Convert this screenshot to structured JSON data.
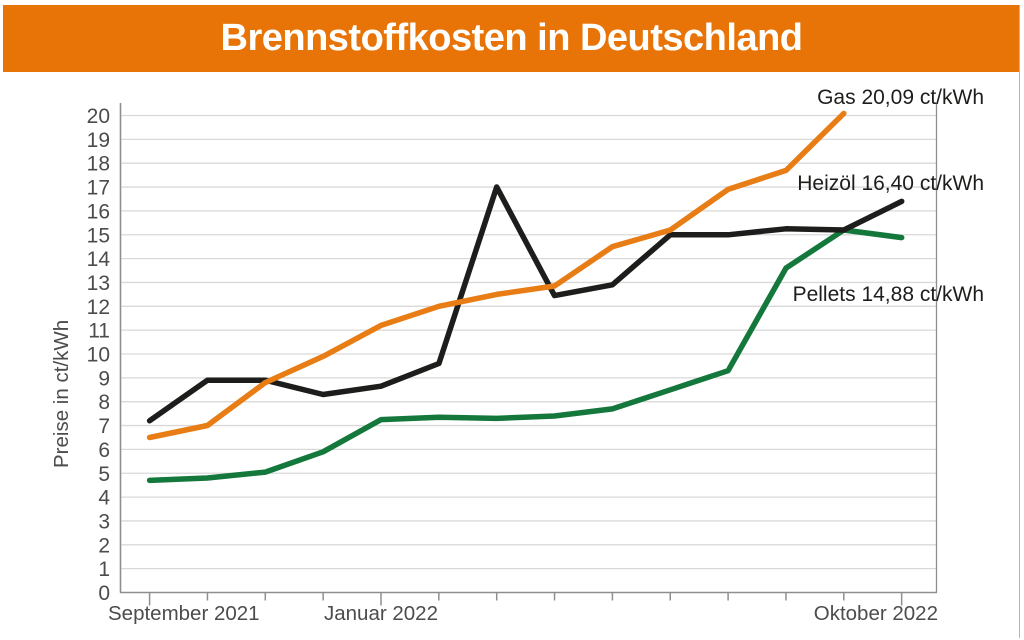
{
  "header": {
    "title": "Brennstoffkosten in Deutschland"
  },
  "colors": {
    "header_bg": "#e87408",
    "header_text": "#ffffff",
    "grid": "#d9d9d9",
    "axis": "#8f8f8f",
    "tick_text": "#4c4c4c",
    "annotation_text": "#1d1d1b"
  },
  "chart_data": {
    "type": "line",
    "title": "Brennstoffkosten in Deutschland",
    "ylabel": "Preise in ct/kWh",
    "ylim": [
      0,
      20
    ],
    "ytick_step": 1,
    "grid": true,
    "legend_position": "right-annotations",
    "ytick_labels": [
      "0",
      "1",
      "2",
      "3",
      "4",
      "5",
      "6",
      "7",
      "8",
      "9",
      "10",
      "11",
      "12",
      "13",
      "14",
      "15",
      "16",
      "17",
      "18",
      "19",
      "20"
    ],
    "x_tick_count": 14,
    "xtick_labels": [
      {
        "tick_index": 0,
        "label": "September 2021",
        "align": "left"
      },
      {
        "tick_index": 4,
        "label": "Januar 2022",
        "align": "center"
      },
      {
        "tick_index": 13,
        "label": "Oktober 2022",
        "align": "right"
      }
    ],
    "series": [
      {
        "name": "Gas",
        "label": "Gas 20,09 ct/kWh",
        "last_value_text": "20,09 ct/kWh",
        "color": "#e87d15",
        "values": [
          6.5,
          7.0,
          8.8,
          9.9,
          11.2,
          12.0,
          12.5,
          12.85,
          14.5,
          15.2,
          16.9,
          17.7,
          20.09,
          null
        ]
      },
      {
        "name": "Heizöl",
        "label": "Heizöl 16,40 ct/kWh",
        "last_value_text": "16,40 ct/kWh",
        "color": "#1d1d1b",
        "values": [
          7.2,
          8.9,
          8.9,
          8.3,
          8.65,
          9.6,
          17.0,
          12.45,
          12.9,
          15.0,
          15.0,
          15.25,
          15.2,
          16.4
        ]
      },
      {
        "name": "Pellets",
        "label": "Pellets 14,88 ct/kWh",
        "last_value_text": "14,88 ct/kWh",
        "color": "#14783c",
        "values": [
          4.7,
          4.8,
          5.05,
          5.9,
          7.25,
          7.35,
          7.3,
          7.4,
          7.7,
          8.5,
          9.3,
          13.6,
          15.2,
          14.88
        ]
      }
    ]
  }
}
